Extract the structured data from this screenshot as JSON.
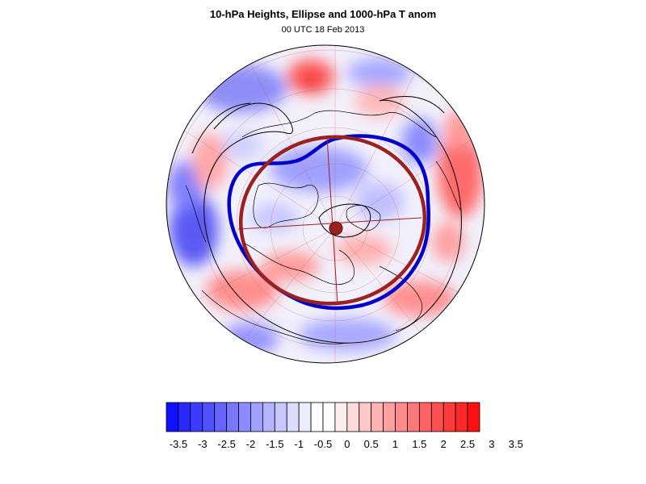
{
  "header": {
    "title": "10-hPa Heights, Ellipse and 1000-hPa T anom",
    "subtitle": "00 UTC 18 Feb 2013"
  },
  "map": {
    "projection": "orthographic-polar-north",
    "fill_variable": "1000-hPa temperature anomaly",
    "contour_variable": "10-hPa geopotential height",
    "colors": {
      "height_contour": "#0000cc",
      "ellipse": "#9b2020",
      "coastline": "#000000",
      "grid": "#b04040"
    }
  },
  "colorbar": {
    "tick_labels": [
      "-3.5",
      "-3",
      "-2.5",
      "-2",
      "-1.5",
      "-1",
      "-0.5",
      "0",
      "0.5",
      "1",
      "1.5",
      "2",
      "2.5",
      "3",
      "3.5"
    ],
    "colors": [
      "#1010ff",
      "#2828ff",
      "#3c3cff",
      "#5050ff",
      "#6464ff",
      "#7878ff",
      "#8c8cff",
      "#a0a0ff",
      "#b4b4ff",
      "#c8c8ff",
      "#dcdcff",
      "#ececff",
      "#ffffff",
      "#ffffff",
      "#ffecec",
      "#ffdcdc",
      "#ffc8c8",
      "#ffb4b4",
      "#ffa0a0",
      "#ff8c8c",
      "#ff7878",
      "#ff6464",
      "#ff5050",
      "#ff3c3c",
      "#ff2828",
      "#ff1010"
    ]
  }
}
